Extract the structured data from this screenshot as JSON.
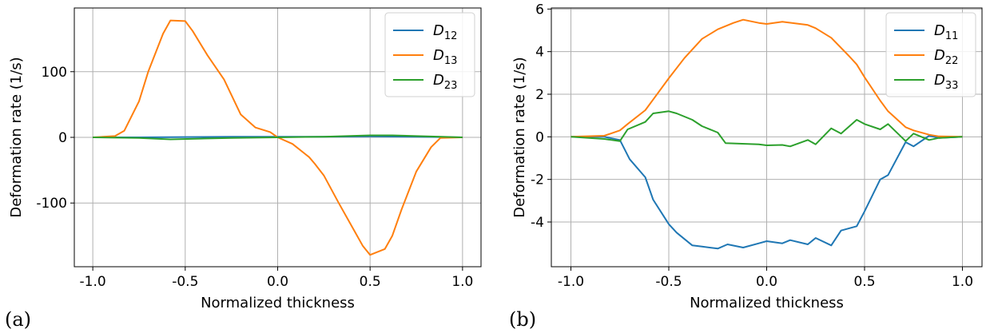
{
  "chart_data": [
    {
      "type": "line",
      "panel_label": "(a)",
      "xlabel": "Normalized thickness",
      "ylabel": "Deformation rate (1/s)",
      "xlim": [
        -1.1,
        1.1
      ],
      "ylim": [
        -197,
        197
      ],
      "x_ticks": [
        -1.0,
        -0.5,
        0.0,
        0.5,
        1.0
      ],
      "x_tick_labels": [
        "-1.0",
        "-0.5",
        "0.0",
        "0.5",
        "1.0"
      ],
      "y_ticks": [
        -100,
        0,
        100
      ],
      "y_tick_labels": [
        "-100",
        "0",
        "100"
      ],
      "grid": true,
      "legend_position": "top-right",
      "series": [
        {
          "name": "D",
          "sub": "12",
          "color": "#1f77b4",
          "points": [
            [
              -1.0,
              0
            ],
            [
              -0.75,
              0
            ],
            [
              -0.5,
              0.5
            ],
            [
              -0.25,
              1
            ],
            [
              0,
              1
            ],
            [
              0.25,
              1
            ],
            [
              0.5,
              1.5
            ],
            [
              0.75,
              1
            ],
            [
              1.0,
              0
            ]
          ]
        },
        {
          "name": "D",
          "sub": "13",
          "color": "#ff7f0e",
          "points": [
            [
              -1.0,
              0
            ],
            [
              -0.88,
              2
            ],
            [
              -0.83,
              10
            ],
            [
              -0.75,
              55
            ],
            [
              -0.7,
              100
            ],
            [
              -0.62,
              158
            ],
            [
              -0.58,
              178
            ],
            [
              -0.5,
              177
            ],
            [
              -0.46,
              162
            ],
            [
              -0.38,
              125
            ],
            [
              -0.29,
              88
            ],
            [
              -0.2,
              35
            ],
            [
              -0.12,
              15
            ],
            [
              -0.04,
              8
            ],
            [
              0.0,
              0
            ],
            [
              0.08,
              -10
            ],
            [
              0.17,
              -30
            ],
            [
              0.2,
              -40
            ],
            [
              0.25,
              -58
            ],
            [
              0.33,
              -100
            ],
            [
              0.42,
              -145
            ],
            [
              0.46,
              -165
            ],
            [
              0.5,
              -179
            ],
            [
              0.58,
              -170
            ],
            [
              0.62,
              -150
            ],
            [
              0.67,
              -110
            ],
            [
              0.75,
              -52
            ],
            [
              0.83,
              -15
            ],
            [
              0.88,
              -1
            ],
            [
              1.0,
              0
            ]
          ]
        },
        {
          "name": "D",
          "sub": "23",
          "color": "#2ca02c",
          "points": [
            [
              -1.0,
              0
            ],
            [
              -0.75,
              -1
            ],
            [
              -0.58,
              -3
            ],
            [
              -0.42,
              -2
            ],
            [
              -0.25,
              -1
            ],
            [
              0,
              0
            ],
            [
              0.25,
              1
            ],
            [
              0.5,
              3
            ],
            [
              0.62,
              3
            ],
            [
              0.75,
              2
            ],
            [
              1.0,
              0
            ]
          ]
        }
      ]
    },
    {
      "type": "line",
      "panel_label": "(b)",
      "xlabel": "Normalized thickness",
      "ylabel": "Deformation rate (1/s)",
      "xlim": [
        -1.1,
        1.1
      ],
      "ylim": [
        -6.1,
        6.05
      ],
      "x_ticks": [
        -1.0,
        -0.5,
        0.0,
        0.5,
        1.0
      ],
      "x_tick_labels": [
        "-1.0",
        "-0.5",
        "0.0",
        "0.5",
        "1.0"
      ],
      "y_ticks": [
        -4,
        -2,
        0,
        2,
        4,
        6
      ],
      "y_tick_labels": [
        "-4",
        "-2",
        "0",
        "2",
        "4",
        "6"
      ],
      "grid": true,
      "legend_position": "top-right",
      "series": [
        {
          "name": "D",
          "sub": "11",
          "color": "#1f77b4",
          "points": [
            [
              -1.0,
              0
            ],
            [
              -0.83,
              0
            ],
            [
              -0.75,
              -0.15
            ],
            [
              -0.7,
              -1.05
            ],
            [
              -0.62,
              -1.9
            ],
            [
              -0.58,
              -2.95
            ],
            [
              -0.5,
              -4.1
            ],
            [
              -0.46,
              -4.5
            ],
            [
              -0.38,
              -5.1
            ],
            [
              -0.33,
              -5.15
            ],
            [
              -0.25,
              -5.25
            ],
            [
              -0.2,
              -5.05
            ],
            [
              -0.12,
              -5.2
            ],
            [
              -0.04,
              -5.0
            ],
            [
              0.0,
              -4.9
            ],
            [
              0.08,
              -5.0
            ],
            [
              0.12,
              -4.85
            ],
            [
              0.21,
              -5.05
            ],
            [
              0.25,
              -4.75
            ],
            [
              0.33,
              -5.1
            ],
            [
              0.38,
              -4.4
            ],
            [
              0.46,
              -4.2
            ],
            [
              0.5,
              -3.5
            ],
            [
              0.58,
              -2.0
            ],
            [
              0.62,
              -1.8
            ],
            [
              0.71,
              -0.25
            ],
            [
              0.75,
              -0.45
            ],
            [
              0.83,
              0.05
            ],
            [
              0.88,
              -0.05
            ],
            [
              1.0,
              0
            ]
          ]
        },
        {
          "name": "D",
          "sub": "22",
          "color": "#ff7f0e",
          "points": [
            [
              -1.0,
              0
            ],
            [
              -0.83,
              0.05
            ],
            [
              -0.75,
              0.3
            ],
            [
              -0.71,
              0.6
            ],
            [
              -0.62,
              1.25
            ],
            [
              -0.58,
              1.75
            ],
            [
              -0.5,
              2.75
            ],
            [
              -0.42,
              3.7
            ],
            [
              -0.33,
              4.6
            ],
            [
              -0.25,
              5.05
            ],
            [
              -0.17,
              5.35
            ],
            [
              -0.12,
              5.5
            ],
            [
              -0.04,
              5.35
            ],
            [
              0.0,
              5.3
            ],
            [
              0.08,
              5.4
            ],
            [
              0.21,
              5.25
            ],
            [
              0.25,
              5.1
            ],
            [
              0.33,
              4.65
            ],
            [
              0.42,
              3.8
            ],
            [
              0.46,
              3.4
            ],
            [
              0.5,
              2.8
            ],
            [
              0.58,
              1.7
            ],
            [
              0.62,
              1.2
            ],
            [
              0.71,
              0.45
            ],
            [
              0.75,
              0.3
            ],
            [
              0.83,
              0.1
            ],
            [
              0.88,
              0.02
            ],
            [
              1.0,
              0
            ]
          ]
        },
        {
          "name": "D",
          "sub": "33",
          "color": "#2ca02c",
          "points": [
            [
              -1.0,
              0
            ],
            [
              -0.83,
              -0.1
            ],
            [
              -0.75,
              -0.2
            ],
            [
              -0.71,
              0.35
            ],
            [
              -0.62,
              0.7
            ],
            [
              -0.58,
              1.1
            ],
            [
              -0.5,
              1.2
            ],
            [
              -0.46,
              1.1
            ],
            [
              -0.38,
              0.8
            ],
            [
              -0.33,
              0.5
            ],
            [
              -0.25,
              0.2
            ],
            [
              -0.21,
              -0.3
            ],
            [
              -0.04,
              -0.35
            ],
            [
              0.0,
              -0.4
            ],
            [
              0.08,
              -0.38
            ],
            [
              0.12,
              -0.45
            ],
            [
              0.21,
              -0.15
            ],
            [
              0.25,
              -0.35
            ],
            [
              0.33,
              0.4
            ],
            [
              0.38,
              0.15
            ],
            [
              0.46,
              0.8
            ],
            [
              0.5,
              0.6
            ],
            [
              0.58,
              0.35
            ],
            [
              0.62,
              0.6
            ],
            [
              0.71,
              -0.2
            ],
            [
              0.75,
              0.15
            ],
            [
              0.83,
              -0.15
            ],
            [
              0.88,
              -0.05
            ],
            [
              1.0,
              0
            ]
          ]
        }
      ]
    }
  ]
}
